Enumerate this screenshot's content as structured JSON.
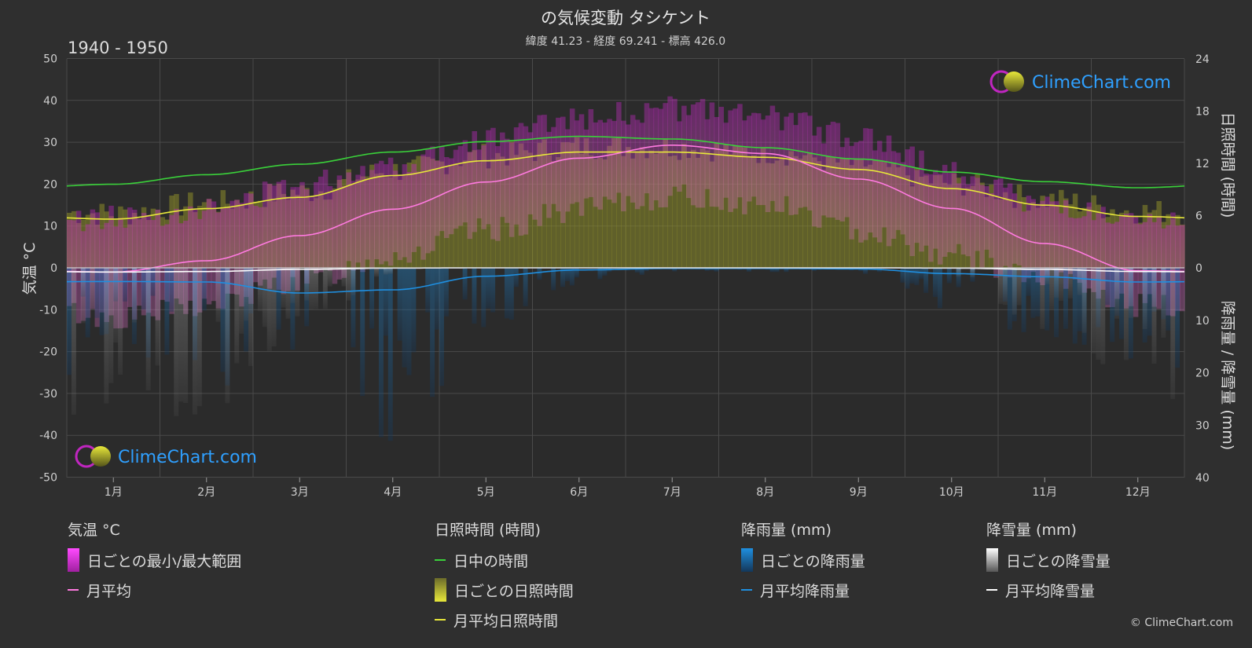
{
  "title": "の気候変動 タシケント",
  "subtitle": "緯度 41.23 - 経度 69.241 - 標高 426.0",
  "period": "1940 - 1950",
  "watermark": "ClimeChart.com",
  "copyright": "© ClimeChart.com",
  "colors": {
    "background": "#2f2f2f",
    "temp_range": "#d63ad6",
    "temp_avg": "#ff7ae0",
    "daylight": "#3ad13a",
    "sunshine_fill": "#b3b32a",
    "sunshine_avg": "#e8e83a",
    "rain": "#1f8fe0",
    "snow": "#ffffff"
  },
  "chart_data": {
    "type": "line",
    "x": [
      "1月",
      "2月",
      "3月",
      "4月",
      "5月",
      "6月",
      "7月",
      "8月",
      "9月",
      "10月",
      "11月",
      "12月"
    ],
    "axes": {
      "left": {
        "label": "気温 °C",
        "range": [
          -50,
          50
        ],
        "ticks": [
          "50",
          "40",
          "30",
          "20",
          "10",
          "0",
          "-10",
          "-20",
          "-30",
          "-40",
          "-50"
        ]
      },
      "right_top": {
        "label": "日照時間 (時間)",
        "range": [
          0,
          24
        ],
        "ticks": [
          "24",
          "18",
          "12",
          "6",
          "0"
        ]
      },
      "right_bottom": {
        "label": "降雨量 / 降雪量 (mm)",
        "range": [
          0,
          40
        ],
        "ticks": [
          "10",
          "20",
          "30",
          "40"
        ]
      }
    },
    "grid": true,
    "series": [
      {
        "name": "日中の時間",
        "axis": "sunshine",
        "values": [
          9.6,
          10.7,
          11.9,
          13.3,
          14.5,
          15.1,
          14.8,
          13.8,
          12.5,
          11.0,
          9.9,
          9.2
        ]
      },
      {
        "name": "月平均日照時間",
        "axis": "sunshine",
        "values": [
          5.6,
          6.8,
          8.1,
          10.6,
          12.3,
          13.3,
          13.3,
          12.7,
          11.3,
          9.1,
          7.2,
          5.9
        ]
      },
      {
        "name": "月平均",
        "axis": "temperature",
        "values": [
          -1.0,
          1.7,
          7.7,
          14.0,
          20.5,
          26.2,
          29.3,
          27.3,
          21.2,
          14.2,
          5.8,
          -0.7
        ]
      },
      {
        "name": "月平均降雨量",
        "axis": "precipitation",
        "values": [
          2.6,
          2.7,
          4.8,
          4.2,
          1.6,
          0.4,
          0.1,
          0.1,
          0.2,
          1.1,
          1.7,
          2.7
        ]
      },
      {
        "name": "月平均降雪量",
        "axis": "precipitation",
        "values": [
          0.8,
          0.7,
          0.3,
          0.05,
          0,
          0,
          0,
          0,
          0,
          0.05,
          0.3,
          0.7
        ]
      }
    ],
    "temperature_range": {
      "name": "日ごとの最小/最大範囲",
      "min": [
        -12,
        -9,
        -3,
        3,
        9,
        14,
        17,
        15,
        9,
        3,
        -3,
        -9
      ],
      "max": [
        12,
        14,
        20,
        25,
        31,
        36,
        38,
        36,
        31,
        23,
        15,
        10
      ]
    }
  },
  "legend": {
    "temperature": {
      "title": "気温 °C",
      "range_label": "日ごとの最小/最大範囲",
      "avg_label": "月平均"
    },
    "sunshine": {
      "title": "日照時間 (時間)",
      "daylight_label": "日中の時間",
      "daily_label": "日ごとの日照時間",
      "avg_label": "月平均日照時間"
    },
    "rain": {
      "title": "降雨量 (mm)",
      "daily_label": "日ごとの降雨量",
      "avg_label": "月平均降雨量"
    },
    "snow": {
      "title": "降雪量 (mm)",
      "daily_label": "日ごとの降雪量",
      "avg_label": "月平均降雪量"
    }
  }
}
